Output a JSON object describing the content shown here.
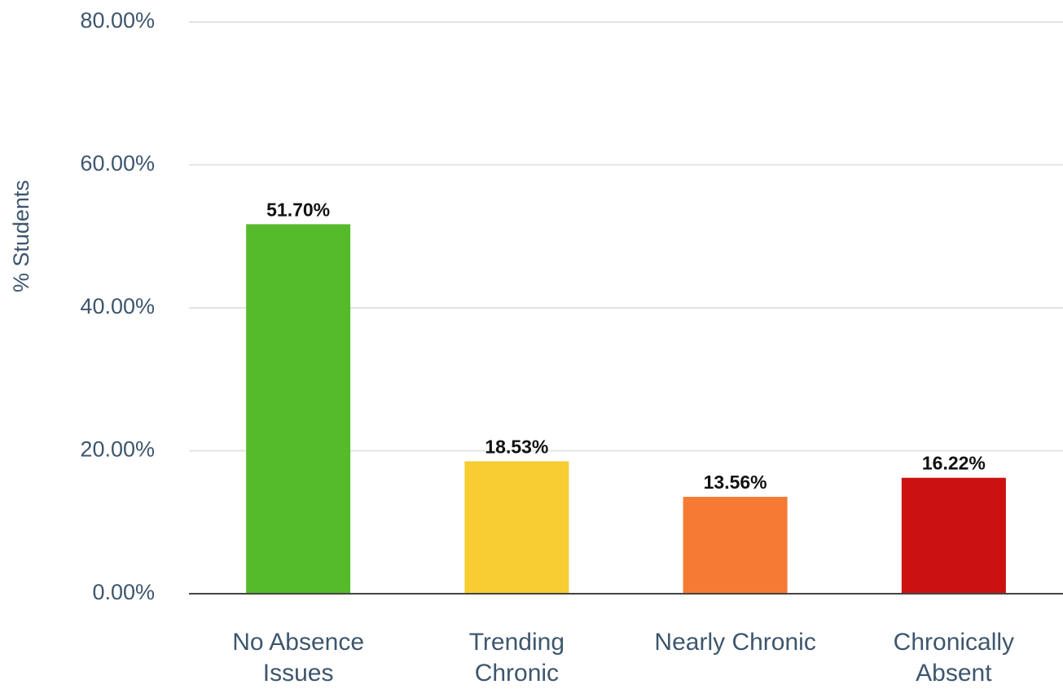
{
  "chart_data": {
    "type": "bar",
    "y_label": "% Students",
    "categories": [
      "No Absence Issues",
      "Trending Chronic",
      "Nearly Chronic",
      "Chronically Absent"
    ],
    "values": [
      51.7,
      18.53,
      13.56,
      16.22
    ],
    "value_labels": [
      "51.70%",
      "18.53%",
      "13.56%",
      "16.22%"
    ],
    "colors": [
      "#56bb2b",
      "#f7cd33",
      "#f57a33",
      "#cc1111"
    ],
    "ylim": [
      0,
      80
    ],
    "yticks": [
      {
        "value": 0,
        "label": "0.00%"
      },
      {
        "value": 20,
        "label": "20.00%"
      },
      {
        "value": 40,
        "label": "40.00%"
      },
      {
        "value": 60,
        "label": "60.00%"
      },
      {
        "value": 80,
        "label": "80.00%"
      }
    ],
    "grid": true
  }
}
